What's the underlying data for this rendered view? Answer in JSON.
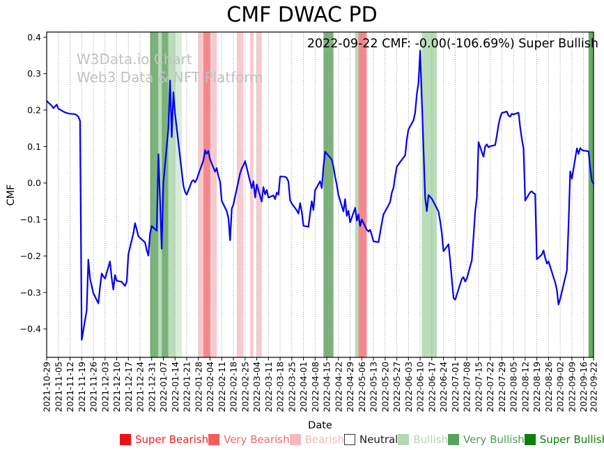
{
  "title": "CMF DWAC PD",
  "annotation": "2022-09-22 CMF: -0.00(-106.69%) Super Bullish",
  "watermark": {
    "line1": "W3Data.io Chart",
    "line2": "Web3 Data & NFT Platform"
  },
  "colors": {
    "line": "#0000ee",
    "grid": "#8a8a8a",
    "axis": "#000000",
    "watermark": "#c2c2c2"
  },
  "legend": {
    "items": [
      {
        "label": "Super Bearish",
        "swatch": "#ee1111",
        "text": "#e82020",
        "border": "#ee1111"
      },
      {
        "label": "Very Bearish",
        "swatch": "#f55d5d",
        "text": "#f06a6a",
        "border": "#f55d5d"
      },
      {
        "label": "Bearish",
        "swatch": "#f7b9bd",
        "text": "#f4b8bc",
        "border": "#f7b9bd"
      },
      {
        "label": "Neutral",
        "swatch": "#ffffff",
        "text": "#1a1a1a",
        "border": "#333333"
      },
      {
        "label": "Bullish",
        "swatch": "#b3d9b3",
        "text": "#b0d5b0",
        "border": "#b3d9b3"
      },
      {
        "label": "Very Bullish",
        "swatch": "#57a257",
        "text": "#4e9e50",
        "border": "#57a257"
      },
      {
        "label": "Super Bullish",
        "swatch": "#0b800b",
        "text": "#0a7d0a",
        "border": "#0b800b"
      }
    ]
  },
  "chart_data": {
    "type": "line",
    "title": "CMF DWAC PD",
    "xlabel": "Date",
    "ylabel": "CMF",
    "ylim": [
      -0.478,
      0.414
    ],
    "x_domain_days": [
      0,
      328
    ],
    "grid": "x-dotted",
    "legend_position": "bottom",
    "y_ticks": [
      0.4,
      0.3,
      0.2,
      0.1,
      0.0,
      -0.1,
      -0.2,
      -0.3,
      -0.4
    ],
    "y_tick_labels": [
      "0.4",
      "0.3",
      "0.2",
      "0.1",
      "0.0",
      "−0.1",
      "−0.2",
      "−0.3",
      "−0.4"
    ],
    "x_tick_days": [
      0,
      7,
      14,
      21,
      28,
      35,
      42,
      49,
      56,
      63,
      70,
      77,
      84,
      91,
      98,
      105,
      112,
      119,
      126,
      133,
      140,
      147,
      154,
      161,
      168,
      175,
      182,
      189,
      196,
      203,
      210,
      217,
      224,
      231,
      238,
      245,
      252,
      259,
      266,
      273,
      280,
      287,
      294,
      301,
      308,
      315,
      322,
      328
    ],
    "x_tick_labels": [
      "2021-10-29",
      "2021-11-05",
      "2021-11-12",
      "2021-11-19",
      "2021-11-26",
      "2021-12-03",
      "2021-12-10",
      "2021-12-17",
      "2021-12-24",
      "2021-12-31",
      "2022-01-07",
      "2022-01-14",
      "2022-01-21",
      "2022-01-28",
      "2022-02-04",
      "2022-02-11",
      "2022-02-18",
      "2022-02-25",
      "2022-03-04",
      "2022-03-11",
      "2022-03-18",
      "2022-03-25",
      "2022-04-01",
      "2022-04-08",
      "2022-04-15",
      "2022-04-22",
      "2022-04-29",
      "2022-05-06",
      "2022-05-13",
      "2022-05-20",
      "2022-05-27",
      "2022-06-03",
      "2022-06-10",
      "2022-06-17",
      "2022-06-24",
      "2022-07-01",
      "2022-07-08",
      "2022-07-15",
      "2022-07-22",
      "2022-07-29",
      "2022-08-05",
      "2022-08-12",
      "2022-08-19",
      "2022-08-26",
      "2022-09-02",
      "2022-09-09",
      "2022-09-16",
      "2022-09-22"
    ],
    "band_colors": {
      "super_bearish": "#ee1111",
      "very_bearish": "#f4898d",
      "bearish": "#f8c9cd",
      "neutral": "#ffffff",
      "bullish": "#b9dcb9",
      "bullish_pale": "#d9ecd9",
      "very_bullish": "#7bb27b",
      "super_bullish": "#67aa67"
    },
    "bands": [
      {
        "from": 62,
        "to": 67,
        "level": "very_bullish"
      },
      {
        "from": 67,
        "to": 69,
        "level": "bullish"
      },
      {
        "from": 69,
        "to": 73,
        "level": "very_bullish"
      },
      {
        "from": 73,
        "to": 77,
        "level": "bullish"
      },
      {
        "from": 77,
        "to": 81,
        "level": "bullish_pale"
      },
      {
        "from": 91,
        "to": 94,
        "level": "bearish"
      },
      {
        "from": 94,
        "to": 98,
        "level": "very_bearish"
      },
      {
        "from": 98,
        "to": 102,
        "level": "bearish"
      },
      {
        "from": 114,
        "to": 118,
        "level": "bearish"
      },
      {
        "from": 122,
        "to": 124,
        "level": "bearish"
      },
      {
        "from": 126,
        "to": 129,
        "level": "bearish"
      },
      {
        "from": 166,
        "to": 172,
        "level": "very_bullish"
      },
      {
        "from": 185,
        "to": 187,
        "level": "bullish"
      },
      {
        "from": 187,
        "to": 192,
        "level": "very_bearish"
      },
      {
        "from": 225,
        "to": 234,
        "level": "bullish"
      },
      {
        "from": 325,
        "to": 328,
        "level": "super_bullish"
      }
    ],
    "series": [
      {
        "name": "CMF",
        "color": "#0000ee",
        "points": [
          [
            0,
            0.225
          ],
          [
            3,
            0.212
          ],
          [
            4,
            0.205
          ],
          [
            5,
            0.21
          ],
          [
            6,
            0.215
          ],
          [
            7,
            0.204
          ],
          [
            10,
            0.196
          ],
          [
            11,
            0.194
          ],
          [
            12,
            0.192
          ],
          [
            13,
            0.191
          ],
          [
            14,
            0.19
          ],
          [
            17,
            0.189
          ],
          [
            18,
            0.186
          ],
          [
            19,
            0.182
          ],
          [
            20,
            0.17
          ],
          [
            21,
            -0.43
          ],
          [
            24,
            -0.35
          ],
          [
            25,
            -0.21
          ],
          [
            26,
            -0.262
          ],
          [
            28,
            -0.302
          ],
          [
            31,
            -0.33
          ],
          [
            32,
            -0.285
          ],
          [
            33,
            -0.248
          ],
          [
            34,
            -0.256
          ],
          [
            35,
            -0.262
          ],
          [
            38,
            -0.215
          ],
          [
            39,
            -0.26
          ],
          [
            40,
            -0.292
          ],
          [
            41,
            -0.252
          ],
          [
            42,
            -0.268
          ],
          [
            45,
            -0.271
          ],
          [
            46,
            -0.277
          ],
          [
            47,
            -0.282
          ],
          [
            48,
            -0.27
          ],
          [
            49,
            -0.195
          ],
          [
            52,
            -0.138
          ],
          [
            53,
            -0.11
          ],
          [
            54,
            -0.127
          ],
          [
            55,
            -0.146
          ],
          [
            59,
            -0.163
          ],
          [
            60,
            -0.184
          ],
          [
            61,
            -0.199
          ],
          [
            62,
            -0.138
          ],
          [
            63,
            -0.118
          ],
          [
            66,
            -0.131
          ],
          [
            67,
            0.079
          ],
          [
            68,
            -0.045
          ],
          [
            69,
            -0.18
          ],
          [
            70,
            0.0
          ],
          [
            73,
            0.15
          ],
          [
            74,
            0.281
          ],
          [
            75,
            0.126
          ],
          [
            76,
            0.249
          ],
          [
            77,
            0.19
          ],
          [
            81,
            0.031
          ],
          [
            82,
            -0.008
          ],
          [
            83,
            -0.024
          ],
          [
            84,
            -0.032
          ],
          [
            87,
            0.004
          ],
          [
            88,
            0.008
          ],
          [
            89,
            0.002
          ],
          [
            90,
            0.01
          ],
          [
            91,
            0.024
          ],
          [
            94,
            0.062
          ],
          [
            95,
            0.09
          ],
          [
            96,
            0.08
          ],
          [
            97,
            0.088
          ],
          [
            98,
            0.065
          ],
          [
            101,
            0.031
          ],
          [
            102,
            0.041
          ],
          [
            103,
            0.019
          ],
          [
            104,
            0.004
          ],
          [
            105,
            -0.049
          ],
          [
            108,
            -0.077
          ],
          [
            109,
            -0.096
          ],
          [
            110,
            -0.157
          ],
          [
            111,
            -0.07
          ],
          [
            112,
            -0.059
          ],
          [
            116,
            0.026
          ],
          [
            117,
            0.04
          ],
          [
            118,
            0.048
          ],
          [
            119,
            0.06
          ],
          [
            122,
            0.004
          ],
          [
            123,
            -0.014
          ],
          [
            124,
            0.005
          ],
          [
            125,
            -0.04
          ],
          [
            126,
            -0.004
          ],
          [
            129,
            -0.051
          ],
          [
            130,
            -0.011
          ],
          [
            131,
            -0.031
          ],
          [
            132,
            -0.019
          ],
          [
            133,
            -0.04
          ],
          [
            136,
            -0.034
          ],
          [
            137,
            -0.044
          ],
          [
            138,
            -0.026
          ],
          [
            139,
            -0.032
          ],
          [
            140,
            0.018
          ],
          [
            143,
            0.017
          ],
          [
            144,
            0.014
          ],
          [
            145,
            0.004
          ],
          [
            146,
            -0.047
          ],
          [
            147,
            -0.056
          ],
          [
            150,
            -0.075
          ],
          [
            151,
            -0.084
          ],
          [
            152,
            -0.055
          ],
          [
            153,
            -0.079
          ],
          [
            154,
            -0.117
          ],
          [
            157,
            -0.12
          ],
          [
            158,
            -0.084
          ],
          [
            159,
            -0.05
          ],
          [
            160,
            -0.074
          ],
          [
            161,
            -0.02
          ],
          [
            164,
            0.005
          ],
          [
            165,
            -0.014
          ],
          [
            166,
            0.045
          ],
          [
            167,
            0.086
          ],
          [
            171,
            0.064
          ],
          [
            172,
            0.045
          ],
          [
            173,
            0.018
          ],
          [
            174,
            -0.005
          ],
          [
            175,
            -0.033
          ],
          [
            178,
            -0.078
          ],
          [
            179,
            -0.044
          ],
          [
            180,
            -0.09
          ],
          [
            181,
            -0.076
          ],
          [
            182,
            -0.108
          ],
          [
            185,
            -0.068
          ],
          [
            186,
            -0.103
          ],
          [
            187,
            -0.086
          ],
          [
            188,
            -0.118
          ],
          [
            189,
            -0.1
          ],
          [
            192,
            -0.128
          ],
          [
            193,
            -0.133
          ],
          [
            194,
            -0.128
          ],
          [
            195,
            -0.143
          ],
          [
            196,
            -0.16
          ],
          [
            199,
            -0.162
          ],
          [
            200,
            -0.136
          ],
          [
            201,
            -0.11
          ],
          [
            202,
            -0.086
          ],
          [
            203,
            -0.078
          ],
          [
            206,
            -0.052
          ],
          [
            207,
            -0.027
          ],
          [
            208,
            -0.013
          ],
          [
            209,
            0.018
          ],
          [
            210,
            0.045
          ],
          [
            214,
            0.07
          ],
          [
            215,
            0.076
          ],
          [
            216,
            0.12
          ],
          [
            217,
            0.147
          ],
          [
            220,
            0.172
          ],
          [
            221,
            0.192
          ],
          [
            222,
            0.243
          ],
          [
            223,
            0.275
          ],
          [
            224,
            0.363
          ],
          [
            227,
            -0.04
          ],
          [
            228,
            -0.077
          ],
          [
            229,
            -0.033
          ],
          [
            230,
            -0.038
          ],
          [
            231,
            -0.043
          ],
          [
            235,
            -0.078
          ],
          [
            236,
            -0.104
          ],
          [
            237,
            -0.137
          ],
          [
            238,
            -0.187
          ],
          [
            241,
            -0.168
          ],
          [
            242,
            -0.213
          ],
          [
            243,
            -0.264
          ],
          [
            244,
            -0.315
          ],
          [
            245,
            -0.32
          ],
          [
            249,
            -0.263
          ],
          [
            250,
            -0.258
          ],
          [
            251,
            -0.27
          ],
          [
            252,
            -0.262
          ],
          [
            255,
            -0.212
          ],
          [
            256,
            -0.148
          ],
          [
            257,
            -0.078
          ],
          [
            258,
            -0.04
          ],
          [
            259,
            0.112
          ],
          [
            262,
            0.072
          ],
          [
            263,
            0.1
          ],
          [
            264,
            0.106
          ],
          [
            265,
            0.098
          ],
          [
            266,
            0.101
          ],
          [
            269,
            0.104
          ],
          [
            270,
            0.13
          ],
          [
            271,
            0.16
          ],
          [
            272,
            0.18
          ],
          [
            273,
            0.192
          ],
          [
            276,
            0.196
          ],
          [
            277,
            0.185
          ],
          [
            278,
            0.182
          ],
          [
            279,
            0.19
          ],
          [
            280,
            0.188
          ],
          [
            283,
            0.193
          ],
          [
            284,
            0.153
          ],
          [
            285,
            0.12
          ],
          [
            286,
            0.095
          ],
          [
            287,
            -0.048
          ],
          [
            290,
            -0.025
          ],
          [
            291,
            -0.023
          ],
          [
            292,
            -0.028
          ],
          [
            293,
            -0.03
          ],
          [
            294,
            -0.209
          ],
          [
            297,
            -0.196
          ],
          [
            298,
            -0.185
          ],
          [
            299,
            -0.205
          ],
          [
            300,
            -0.221
          ],
          [
            301,
            -0.215
          ],
          [
            304,
            -0.259
          ],
          [
            305,
            -0.273
          ],
          [
            306,
            -0.292
          ],
          [
            307,
            -0.333
          ],
          [
            308,
            -0.318
          ],
          [
            312,
            -0.24
          ],
          [
            313,
            -0.115
          ],
          [
            314,
            0.032
          ],
          [
            315,
            0.012
          ],
          [
            318,
            0.095
          ],
          [
            319,
            0.08
          ],
          [
            320,
            0.096
          ],
          [
            321,
            0.091
          ],
          [
            322,
            0.089
          ],
          [
            325,
            0.087
          ],
          [
            326,
            0.042
          ],
          [
            327,
            0.006
          ],
          [
            328,
            -0.002
          ]
        ]
      }
    ]
  }
}
